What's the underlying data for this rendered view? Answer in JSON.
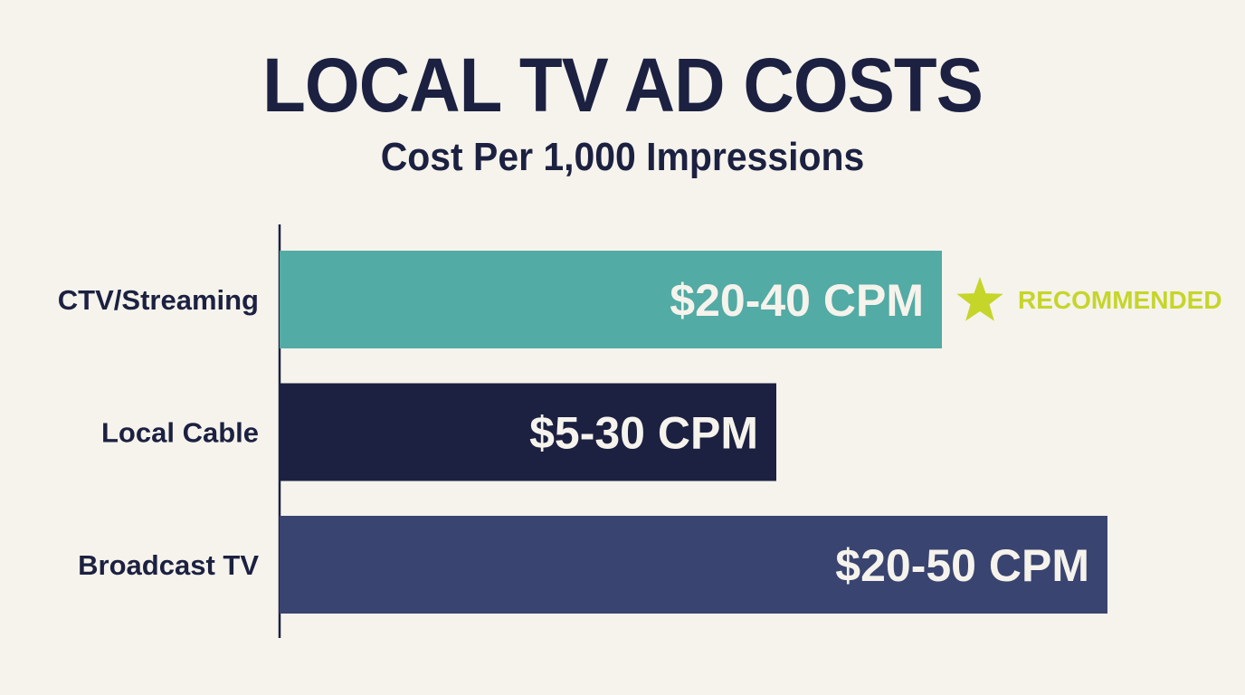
{
  "title": "LOCAL TV AD COSTS",
  "subtitle": "Cost Per 1,000 Impressions",
  "chart_data": {
    "type": "bar",
    "orientation": "horizontal",
    "title": "LOCAL TV AD COSTS",
    "subtitle": "Cost Per 1,000 Impressions",
    "categories": [
      "CTV/Streaming",
      "Local Cable",
      "Broadcast TV"
    ],
    "ranges": [
      [
        20,
        40
      ],
      [
        5,
        30
      ],
      [
        20,
        50
      ]
    ],
    "values": [
      40,
      30,
      50
    ],
    "data_labels": [
      "$20-40 CPM",
      "$5-30 CPM",
      "$20-50 CPM"
    ],
    "colors": [
      "#52aba4",
      "#1c2141",
      "#3a4470"
    ],
    "annotation": {
      "category": "CTV/Streaming",
      "text": "RECOMMENDED",
      "icon": "star-icon",
      "color": "#c6d52a"
    },
    "xlim": [
      0,
      50
    ],
    "grid": false,
    "legend": "none",
    "xlabel": "",
    "ylabel": ""
  }
}
